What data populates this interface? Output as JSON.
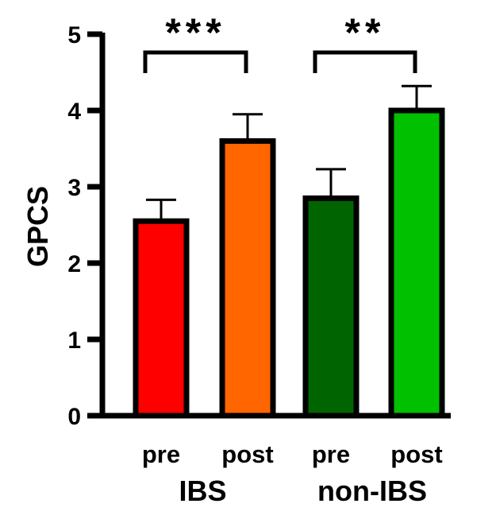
{
  "chart_data": {
    "type": "bar",
    "ylabel": "GPCS",
    "ylim": [
      0,
      5
    ],
    "yticks": [
      "0",
      "1",
      "2",
      "3",
      "4",
      "5"
    ],
    "grid": false,
    "legend": "none",
    "categories": [
      "pre",
      "post",
      "pre",
      "post"
    ],
    "groups": [
      {
        "label": "IBS",
        "categories": [
          0,
          1
        ]
      },
      {
        "label": "non-IBS",
        "categories": [
          2,
          3
        ]
      }
    ],
    "values": [
      2.55,
      3.6,
      2.85,
      4.0
    ],
    "errors": [
      0.28,
      0.35,
      0.38,
      0.32
    ],
    "colors": [
      "#ff0000",
      "#ff6600",
      "#006400",
      "#00c000"
    ],
    "outline_color": "#000000",
    "significance": [
      {
        "from": 0,
        "to": 1,
        "label": "***"
      },
      {
        "from": 2,
        "to": 3,
        "label": "**"
      }
    ]
  }
}
